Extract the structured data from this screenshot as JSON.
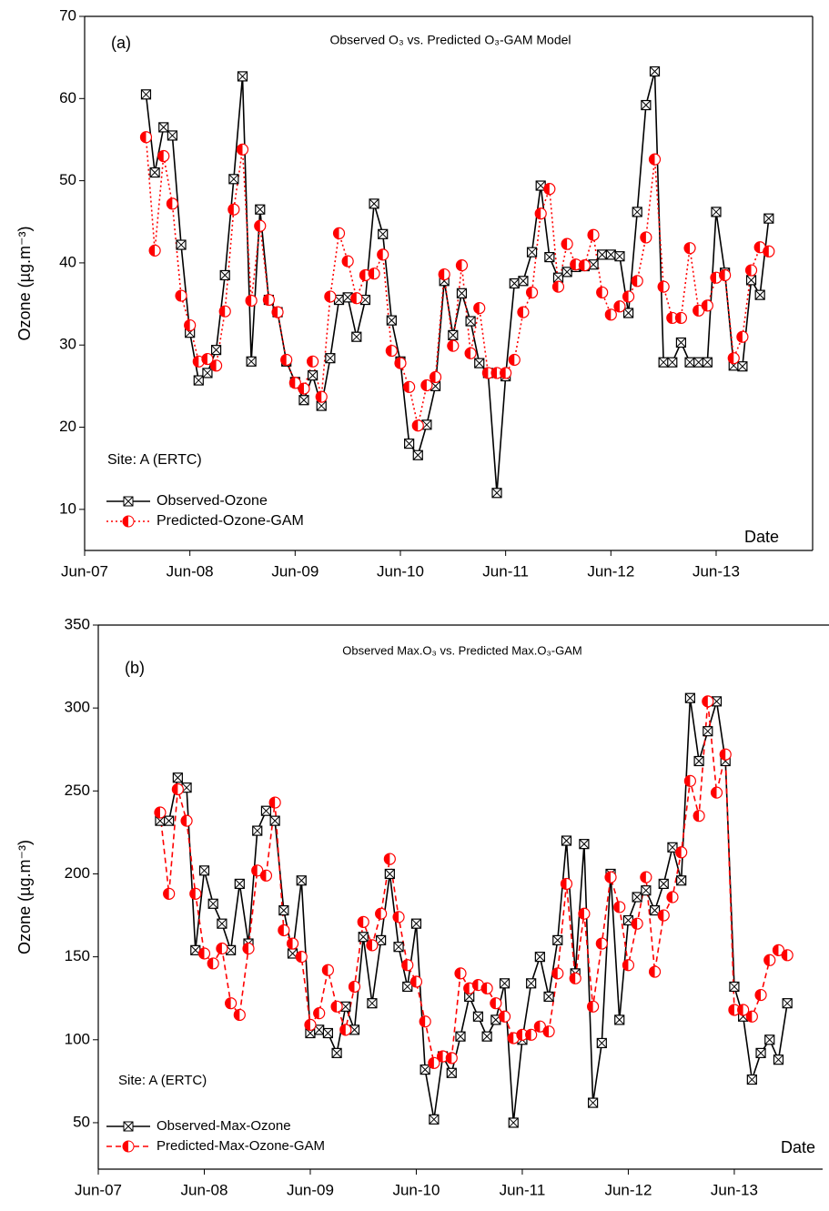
{
  "chart_data": [
    {
      "type": "line",
      "panel": "(a)",
      "title": "Observed O₃ vs. Predicted O₃-GAM Model",
      "y_label": "Ozone (µg.m⁻³)",
      "x_label": "Date",
      "annotation": "Site: A (ERTC)",
      "legend": "lower left",
      "x": [
        "2008-01",
        "2008-02",
        "2008-03",
        "2008-04",
        "2008-05",
        "2008-06",
        "2008-07",
        "2008-08",
        "2008-09",
        "2008-10",
        "2008-11",
        "2008-12",
        "2009-01",
        "2009-02",
        "2009-03",
        "2009-04",
        "2009-05",
        "2009-06",
        "2009-07",
        "2009-08",
        "2009-09",
        "2009-10",
        "2009-11",
        "2009-12",
        "2010-01",
        "2010-02",
        "2010-03",
        "2010-04",
        "2010-05",
        "2010-06",
        "2010-07",
        "2010-08",
        "2010-09",
        "2010-10",
        "2010-11",
        "2010-12",
        "2011-01",
        "2011-02",
        "2011-03",
        "2011-04",
        "2011-05",
        "2011-06",
        "2011-07",
        "2011-08",
        "2011-09",
        "2011-10",
        "2011-11",
        "2011-12",
        "2012-01",
        "2012-02",
        "2012-03",
        "2012-04",
        "2012-05",
        "2012-06",
        "2012-07",
        "2012-08",
        "2012-09",
        "2012-10",
        "2012-11",
        "2012-12",
        "2013-01",
        "2013-02",
        "2013-03",
        "2013-04",
        "2013-05",
        "2013-06",
        "2013-07",
        "2013-08",
        "2013-09",
        "2013-10",
        "2013-11",
        "2013-12"
      ],
      "series": [
        {
          "name": "Observed-Ozone",
          "color": "#000000",
          "dash": "solid",
          "marker": "boxed-x",
          "values": [
            60.5,
            51,
            56.5,
            55.5,
            42.2,
            31.5,
            25.7,
            26.6,
            29.4,
            38.5,
            50.2,
            62.7,
            28,
            46.5,
            35.5,
            34,
            28,
            25.5,
            23.3,
            26.3,
            22.6,
            28.4,
            35.5,
            35.8,
            31,
            35.5,
            47.2,
            43.5,
            33,
            28,
            18,
            16.6,
            20.3,
            25,
            37.8,
            31.2,
            36.3,
            32.9,
            27.8,
            26.6,
            12,
            26.2,
            37.5,
            37.8,
            41.3,
            49.4,
            40.7,
            38.2,
            38.9,
            39.5,
            39.6,
            39.8,
            41,
            41,
            40.8,
            33.9,
            46.2,
            59.2,
            63.3,
            27.9,
            27.9,
            30.3,
            27.9,
            27.9,
            27.9,
            46.2,
            38.8,
            27.5,
            27.4,
            37.9,
            36.1,
            45.4
          ]
        },
        {
          "name": "Predicted-Ozone-GAM",
          "color": "#ff0000",
          "dash": "dotted",
          "marker": "half-circle",
          "values": [
            55.3,
            41.5,
            53,
            47.2,
            36,
            32.4,
            28,
            28.3,
            27.5,
            34.1,
            46.5,
            53.8,
            35.4,
            44.5,
            35.5,
            34,
            28.2,
            25.4,
            24.7,
            28,
            23.7,
            35.9,
            43.6,
            40.2,
            35.7,
            38.5,
            38.7,
            41,
            29.3,
            27.8,
            24.9,
            20.2,
            25.1,
            26.1,
            38.6,
            29.9,
            39.7,
            29,
            34.5,
            26.6,
            26.6,
            26.6,
            28.2,
            34,
            36.4,
            46,
            49,
            37.1,
            42.3,
            39.8,
            39.7,
            43.4,
            36.4,
            33.7,
            34.7,
            35.9,
            37.8,
            43.1,
            52.6,
            37.1,
            33.3,
            33.3,
            41.8,
            34.2,
            34.8,
            38.2,
            38.5,
            28.4,
            31,
            39.1,
            41.9,
            41.4
          ]
        }
      ],
      "xlim": [
        "2007-06",
        "2014-05"
      ],
      "xticks": [
        {
          "value": "2007-06",
          "label": "Jun-07"
        },
        {
          "value": "2008-06",
          "label": "Jun-08"
        },
        {
          "value": "2009-06",
          "label": "Jun-09"
        },
        {
          "value": "2010-06",
          "label": "Jun-10"
        },
        {
          "value": "2011-06",
          "label": "Jun-11"
        },
        {
          "value": "2012-06",
          "label": "Jun-12"
        },
        {
          "value": "2013-06",
          "label": "Jun-13"
        }
      ],
      "ylim": [
        5,
        70
      ],
      "yticks": [
        10,
        20,
        30,
        40,
        50,
        60,
        70
      ],
      "grid": false
    },
    {
      "type": "line",
      "panel": "(b)",
      "title": "Observed Max.O₃ vs. Predicted Max.O₃-GAM",
      "y_label": "Ozone (µg.m⁻³)",
      "x_label": "Date",
      "annotation": "Site: A (ERTC)",
      "legend": "lower left",
      "x": [
        "2008-01",
        "2008-02",
        "2008-03",
        "2008-04",
        "2008-05",
        "2008-06",
        "2008-07",
        "2008-08",
        "2008-09",
        "2008-10",
        "2008-11",
        "2008-12",
        "2009-01",
        "2009-02",
        "2009-03",
        "2009-04",
        "2009-05",
        "2009-06",
        "2009-07",
        "2009-08",
        "2009-09",
        "2009-10",
        "2009-11",
        "2009-12",
        "2010-01",
        "2010-02",
        "2010-03",
        "2010-04",
        "2010-05",
        "2010-06",
        "2010-07",
        "2010-08",
        "2010-09",
        "2010-10",
        "2010-11",
        "2010-12",
        "2011-01",
        "2011-02",
        "2011-03",
        "2011-04",
        "2011-05",
        "2011-06",
        "2011-07",
        "2011-08",
        "2011-09",
        "2011-10",
        "2011-11",
        "2011-12",
        "2012-01",
        "2012-02",
        "2012-03",
        "2012-04",
        "2012-05",
        "2012-06",
        "2012-07",
        "2012-08",
        "2012-09",
        "2012-10",
        "2012-11",
        "2012-12",
        "2013-01",
        "2013-02",
        "2013-03",
        "2013-04",
        "2013-05",
        "2013-06",
        "2013-07",
        "2013-08",
        "2013-09",
        "2013-10",
        "2013-11",
        "2013-12"
      ],
      "series": [
        {
          "name": "Observed-Max-Ozone",
          "color": "#000000",
          "dash": "solid",
          "marker": "boxed-x",
          "values": [
            232,
            232,
            258,
            252,
            154,
            202,
            182,
            170,
            154,
            194,
            158,
            226,
            238,
            232,
            178,
            152,
            196,
            104,
            106,
            104,
            92,
            120,
            106,
            162,
            122,
            160,
            200,
            156,
            132,
            170,
            82,
            52,
            90,
            80,
            102,
            126,
            114,
            102,
            112,
            134,
            50,
            100,
            134,
            150,
            126,
            160,
            220,
            140,
            218,
            62,
            98,
            200,
            112,
            172,
            186,
            190,
            178,
            194,
            216,
            196,
            306,
            268,
            286,
            304,
            268,
            132,
            114,
            76,
            92,
            100,
            88,
            122
          ]
        },
        {
          "name": "Predicted-Max-Ozone-GAM",
          "color": "#ff0000",
          "dash": "dashed",
          "marker": "half-circle",
          "values": [
            237,
            188,
            251,
            232,
            188,
            152,
            146,
            155,
            122,
            115,
            155,
            202,
            199,
            243,
            166,
            158,
            150,
            109,
            116,
            142,
            120,
            106,
            132,
            171,
            157,
            176,
            209,
            174,
            145,
            135,
            111,
            86,
            90,
            89,
            140,
            131,
            133,
            131,
            122,
            114,
            101,
            103,
            103,
            108,
            105,
            140,
            194,
            137,
            176,
            120,
            158,
            198,
            180,
            145,
            170,
            198,
            141,
            175,
            186,
            213,
            256,
            235,
            304,
            249,
            272,
            118,
            118,
            114,
            127,
            148,
            154,
            151
          ]
        }
      ],
      "xlim": [
        "2007-06",
        "2014-04"
      ],
      "xticks": [
        {
          "value": "2007-06",
          "label": "Jun-07"
        },
        {
          "value": "2008-06",
          "label": "Jun-08"
        },
        {
          "value": "2009-06",
          "label": "Jun-09"
        },
        {
          "value": "2010-06",
          "label": "Jun-10"
        },
        {
          "value": "2011-06",
          "label": "Jun-11"
        },
        {
          "value": "2012-06",
          "label": "Jun-12"
        },
        {
          "value": "2013-06",
          "label": "Jun-13"
        }
      ],
      "ylim": [
        22,
        350
      ],
      "yticks": [
        50,
        100,
        150,
        200,
        250,
        300,
        350
      ],
      "grid": false
    }
  ]
}
